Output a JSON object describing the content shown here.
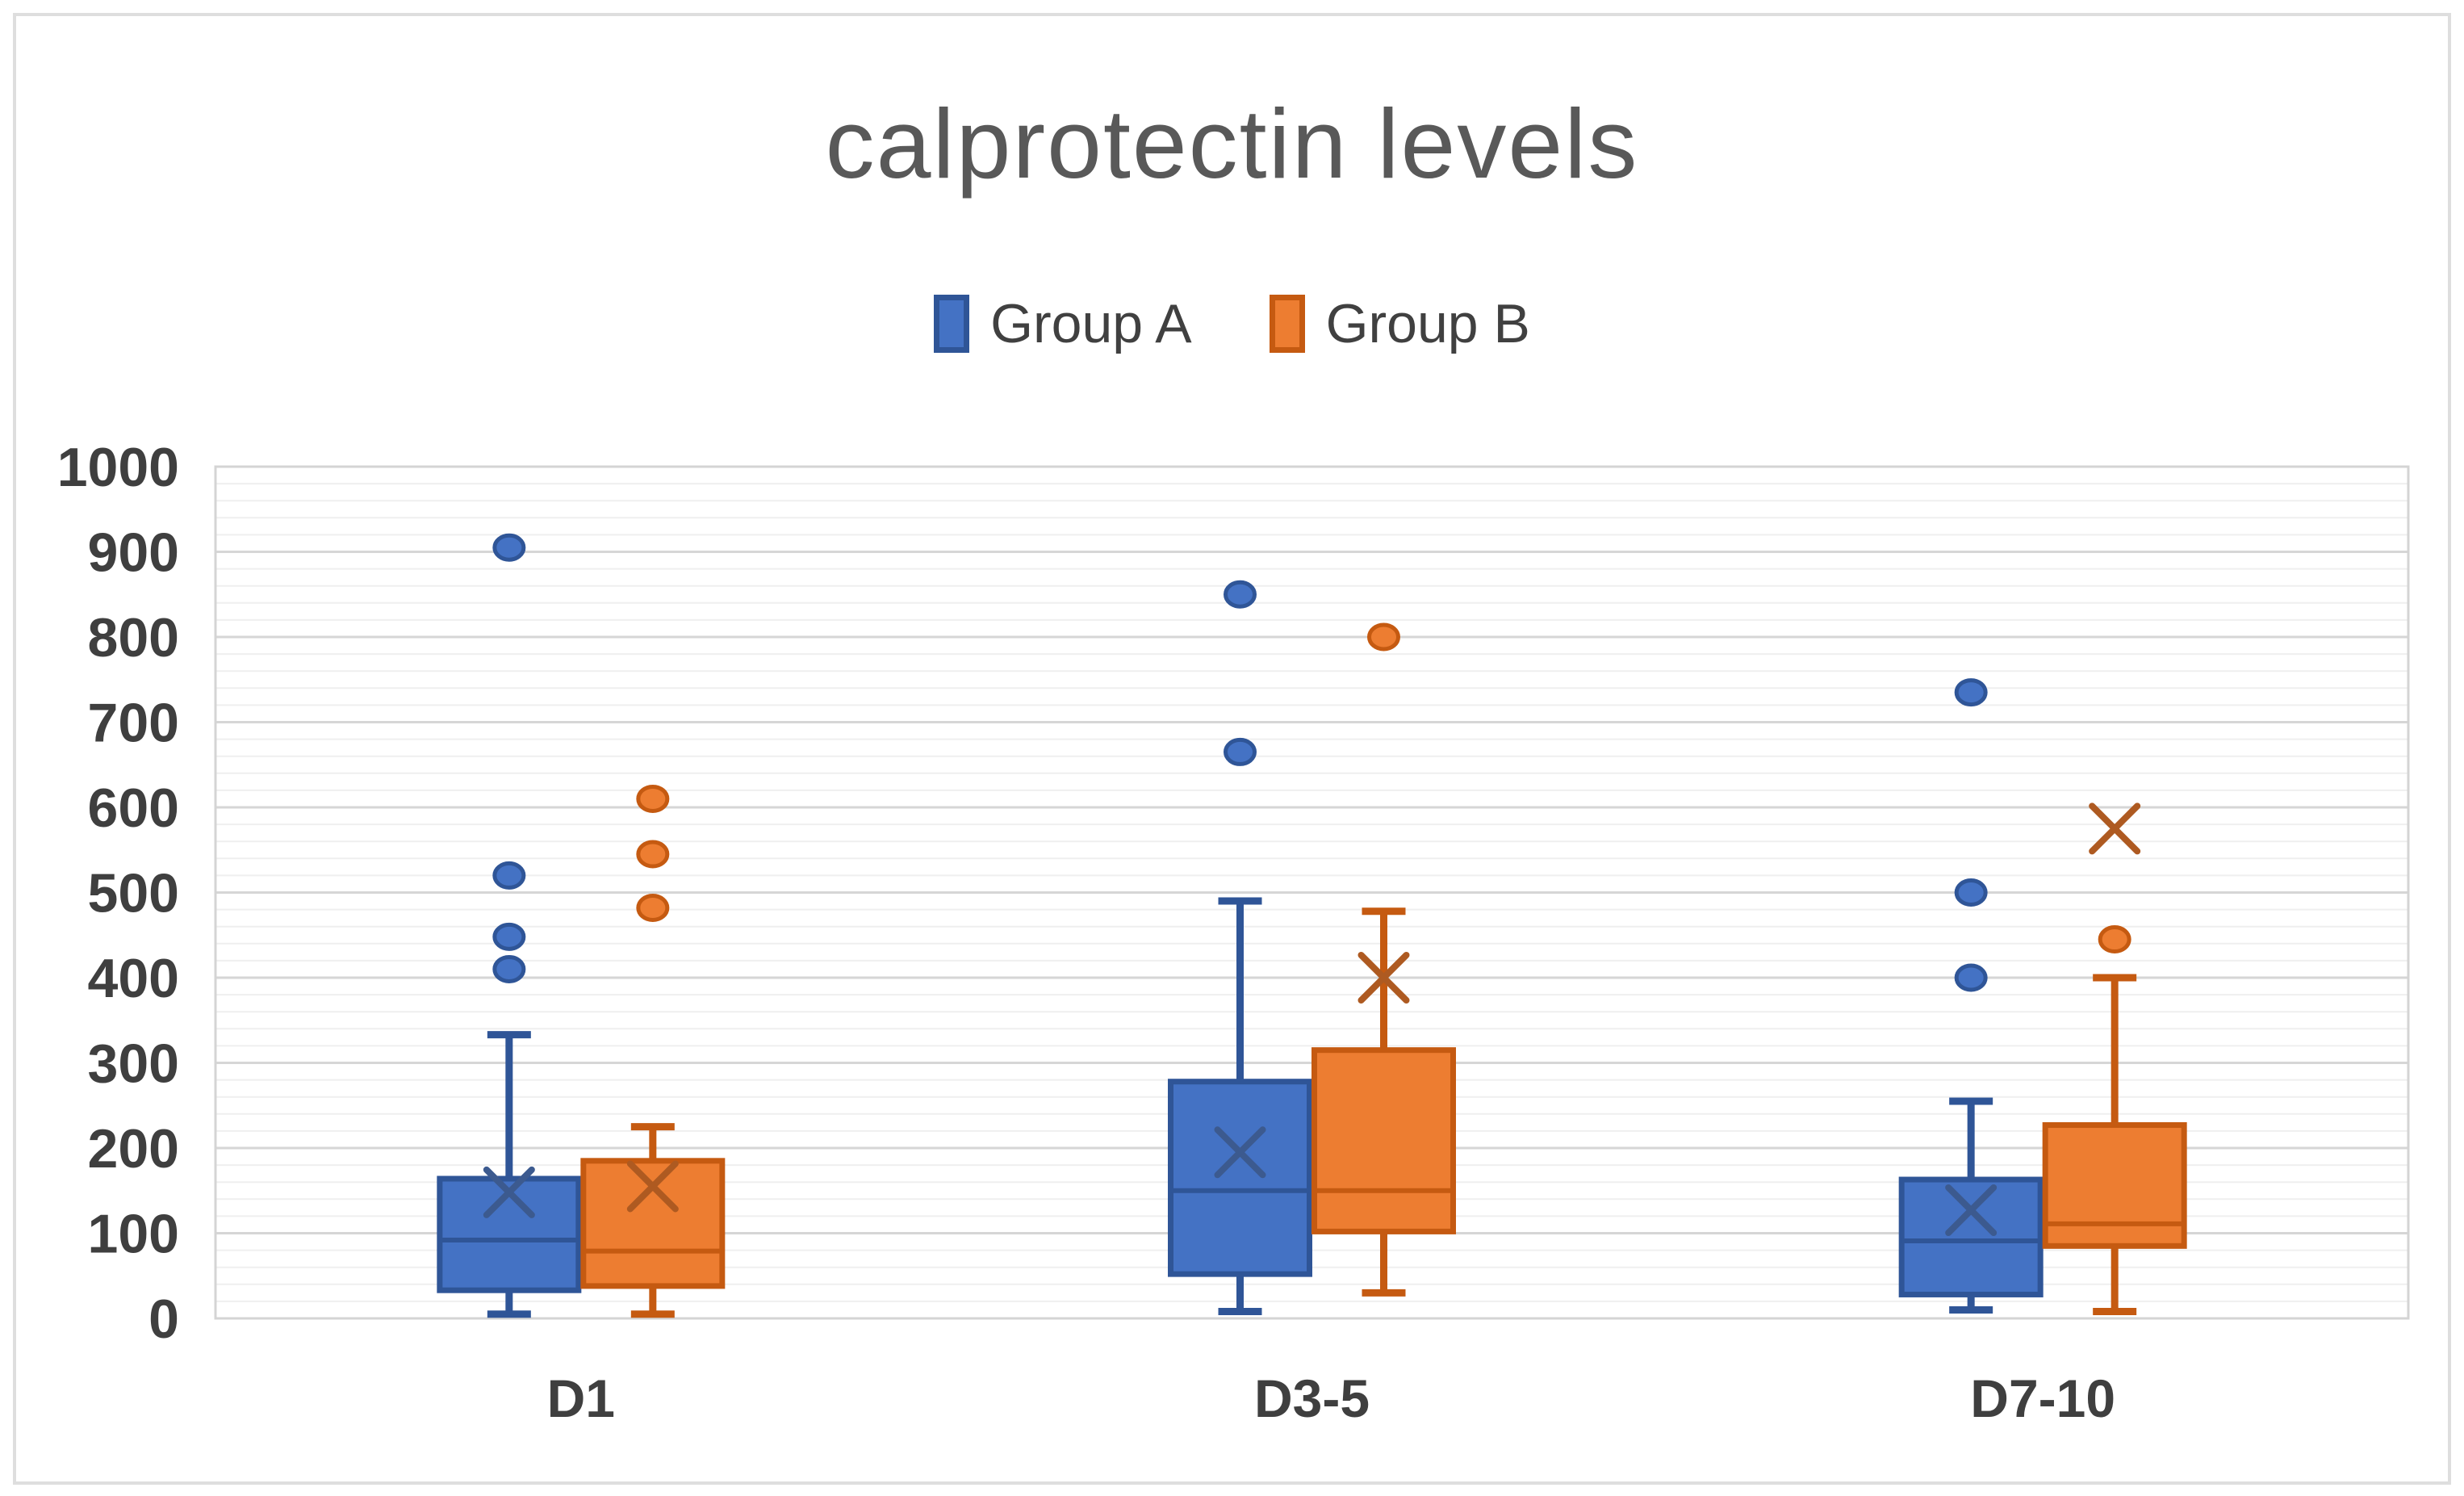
{
  "title": "calprotectin levels",
  "legend": [
    {
      "label": "Group A",
      "color": "#4472C4",
      "border": "#2F5597"
    },
    {
      "label": "Group B",
      "color": "#ED7D31",
      "border": "#C55A11"
    }
  ],
  "colors": {
    "major_gridline": "#D6D6D6",
    "minor_gridline": "#EFEFEF",
    "plot_border": "#D4D4D4",
    "title_text": "#595959",
    "axis_text": "#3F3F3F",
    "frame_border": "#DEDEDE"
  },
  "chart_data": {
    "type": "boxplot",
    "title": "calprotectin levels",
    "categories": [
      "D1",
      "D3-5",
      "D7-10"
    ],
    "y_axis": {
      "min": 0,
      "max": 1000,
      "major_step": 100,
      "minor_step": 20,
      "ticks": [
        0,
        100,
        200,
        300,
        400,
        500,
        600,
        700,
        800,
        900,
        1000
      ]
    },
    "grid": "major+minor",
    "legend_position": "top",
    "series": [
      {
        "name": "Group A",
        "fill": "#4472C4",
        "stroke": "#2F5597",
        "mean_color": "#3C5A8F",
        "boxes": [
          {
            "category": "D1",
            "whisker_min": 5,
            "q1": 33,
            "median": 92,
            "q3": 164,
            "whisker_max": 333,
            "mean": 148,
            "outliers": [
              905,
              520,
              448,
              410
            ]
          },
          {
            "category": "D3-5",
            "whisker_min": 8,
            "q1": 52,
            "median": 150,
            "q3": 278,
            "whisker_max": 490,
            "mean": 195,
            "outliers": [
              850,
              665
            ]
          },
          {
            "category": "D7-10",
            "whisker_min": 10,
            "q1": 28,
            "median": 91,
            "q3": 163,
            "whisker_max": 255,
            "mean": 127,
            "outliers": [
              735,
              500,
              400
            ]
          }
        ]
      },
      {
        "name": "Group B",
        "fill": "#ED7D31",
        "stroke": "#C55A11",
        "mean_color": "#AE5A21",
        "boxes": [
          {
            "category": "D1",
            "whisker_min": 5,
            "q1": 38,
            "median": 79,
            "q3": 185,
            "whisker_max": 225,
            "mean": 155,
            "outliers": [
              610,
              545,
              482
            ]
          },
          {
            "category": "D3-5",
            "whisker_min": 30,
            "q1": 102,
            "median": 150,
            "q3": 315,
            "whisker_max": 478,
            "mean": 400,
            "outliers": [
              800
            ]
          },
          {
            "category": "D7-10",
            "whisker_min": 8,
            "q1": 85,
            "median": 111,
            "q3": 227,
            "whisker_max": 400,
            "mean": 575,
            "outliers": [
              445
            ]
          }
        ]
      }
    ]
  }
}
